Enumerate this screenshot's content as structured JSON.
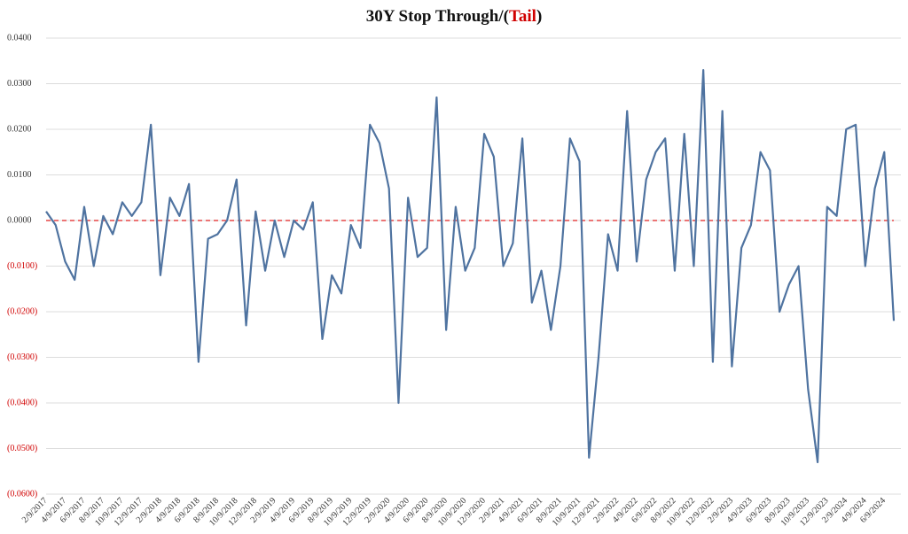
{
  "chart_data": {
    "type": "line",
    "title": [
      "30Y Stop Through/(",
      "Tail",
      ")"
    ],
    "title_highlight_color": "#d00000",
    "categories": [
      "2/9/2017",
      null,
      "4/9/2017",
      null,
      "6/9/2017",
      null,
      "8/9/2017",
      null,
      "10/9/2017",
      null,
      "12/9/2017",
      null,
      "2/9/2018",
      null,
      "4/9/2018",
      null,
      "6/9/2018",
      null,
      "8/9/2018",
      null,
      "10/9/2018",
      null,
      "12/9/2018",
      null,
      "2/9/2019",
      null,
      "4/9/2019",
      null,
      "6/9/2019",
      null,
      "8/9/2019",
      null,
      "10/9/2019",
      null,
      "12/9/2019",
      null,
      "2/9/2020",
      null,
      "4/9/2020",
      null,
      "6/9/2020",
      null,
      "8/9/2020",
      null,
      "10/9/2020",
      null,
      "12/9/2020",
      null,
      "2/9/2021",
      null,
      "4/9/2021",
      null,
      "6/9/2021",
      null,
      "8/9/2021",
      null,
      "10/9/2021",
      null,
      "12/9/2021",
      null,
      "2/9/2022",
      null,
      "4/9/2022",
      null,
      "6/9/2022",
      null,
      "8/9/2022",
      null,
      "10/9/2022",
      null,
      "12/9/2022",
      null,
      "2/9/2023",
      null,
      "4/9/2023",
      null,
      "6/9/2023",
      null,
      "8/9/2023",
      null,
      "10/9/2023",
      null,
      "12/9/2023",
      null,
      "2/9/2024",
      null,
      "4/9/2024",
      null,
      "6/9/2024",
      null
    ],
    "values": [
      0.002,
      -0.001,
      -0.009,
      -0.013,
      0.003,
      -0.01,
      0.001,
      -0.003,
      0.004,
      0.001,
      0.004,
      0.021,
      -0.012,
      0.005,
      0.001,
      0.008,
      -0.031,
      -0.004,
      -0.003,
      0.0,
      0.009,
      -0.023,
      0.002,
      -0.011,
      0.0,
      -0.008,
      0.0,
      -0.002,
      0.004,
      -0.026,
      -0.012,
      -0.016,
      -0.001,
      -0.006,
      0.021,
      0.017,
      0.007,
      -0.04,
      0.005,
      -0.008,
      -0.006,
      0.027,
      -0.024,
      0.003,
      -0.011,
      -0.006,
      0.019,
      0.014,
      -0.01,
      -0.005,
      0.018,
      -0.018,
      -0.011,
      -0.024,
      -0.01,
      0.018,
      0.013,
      -0.052,
      -0.03,
      -0.003,
      -0.011,
      0.024,
      -0.009,
      0.009,
      0.015,
      0.018,
      -0.011,
      0.019,
      -0.01,
      0.033,
      -0.031,
      0.024,
      -0.032,
      -0.006,
      -0.001,
      0.015,
      0.011,
      -0.02,
      -0.014,
      -0.01,
      -0.037,
      -0.053,
      0.003,
      0.001,
      0.02,
      0.021,
      -0.01,
      0.007,
      0.015,
      -0.022
    ],
    "color": "#4f73a0",
    "ylim": [
      -0.06,
      0.04
    ],
    "yticks": [
      {
        "value": 0.04,
        "label": "0.0400"
      },
      {
        "value": 0.03,
        "label": "0.0300"
      },
      {
        "value": 0.02,
        "label": "0.0200"
      },
      {
        "value": 0.01,
        "label": "0.0100"
      },
      {
        "value": 0,
        "label": "0.0000"
      },
      {
        "value": -0.01,
        "label": "(0.0100)"
      },
      {
        "value": -0.02,
        "label": "(0.0200)"
      },
      {
        "value": -0.03,
        "label": "(0.0300)"
      },
      {
        "value": -0.04,
        "label": "(0.0400)"
      },
      {
        "value": -0.05,
        "label": "(0.0500)"
      },
      {
        "value": -0.06,
        "label": "(0.0600)"
      }
    ],
    "negative_tick_color": "#d00000",
    "zero_line_color": "#e02020",
    "grid": true
  }
}
